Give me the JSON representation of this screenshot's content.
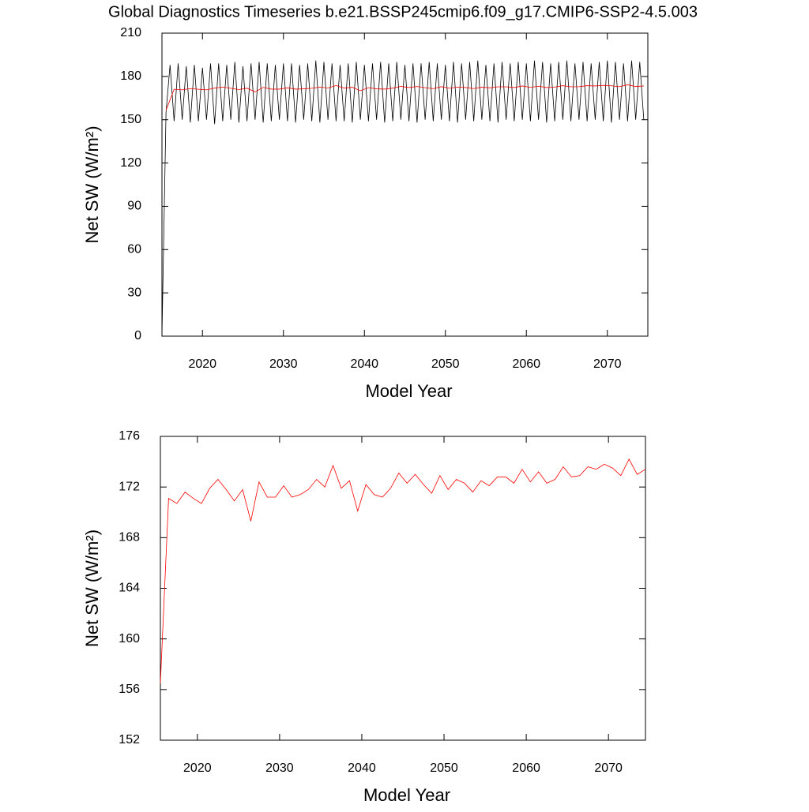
{
  "chart_data": [
    {
      "type": "line",
      "title": "Global Diagnostics Timeseries b.e21.BSSP245cmip6.f09_g17.CMIP6-SSP2-4.5.003",
      "xlabel": "Model Year",
      "ylabel": "Net SW (W/m²)",
      "xlim": [
        2015,
        2075
      ],
      "xticks": [
        2020,
        2030,
        2040,
        2050,
        2060,
        2070
      ],
      "ylim": [
        0,
        210
      ],
      "yticks": [
        0,
        30,
        60,
        90,
        120,
        150,
        180,
        210
      ],
      "x": [
        2015.5,
        2016.5,
        2017.5,
        2018.5,
        2019.5,
        2020.5,
        2021.5,
        2022.5,
        2023.5,
        2024.5,
        2025.5,
        2026.5,
        2027.5,
        2028.5,
        2029.5,
        2030.5,
        2031.5,
        2032.5,
        2033.5,
        2034.5,
        2035.5,
        2036.5,
        2037.5,
        2038.5,
        2039.5,
        2040.5,
        2041.5,
        2042.5,
        2043.5,
        2044.5,
        2045.5,
        2046.5,
        2047.5,
        2048.5,
        2049.5,
        2050.5,
        2051.5,
        2052.5,
        2053.5,
        2054.5,
        2055.5,
        2056.5,
        2057.5,
        2058.5,
        2059.5,
        2060.5,
        2061.5,
        2062.5,
        2063.5,
        2064.5,
        2065.5,
        2066.5,
        2067.5,
        2068.5,
        2069.5,
        2070.5,
        2071.5,
        2072.5,
        2073.5,
        2074.5
      ],
      "series": [
        {
          "color": "#000000",
          "x": [
            2015,
            2015.5,
            2016,
            2016.5,
            2017,
            2017.5,
            2018,
            2018.5,
            2019,
            2019.5,
            2020,
            2020.5,
            2021,
            2021.5,
            2022,
            2022.5,
            2023,
            2023.5,
            2024,
            2024.5,
            2025,
            2025.5,
            2026,
            2026.5,
            2027,
            2027.5,
            2028,
            2028.5,
            2029,
            2029.5,
            2030,
            2030.5,
            2031,
            2031.5,
            2032,
            2032.5,
            2033,
            2033.5,
            2034,
            2034.5,
            2035,
            2035.5,
            2036,
            2036.5,
            2037,
            2037.5,
            2038,
            2038.5,
            2039,
            2039.5,
            2040,
            2040.5,
            2041,
            2041.5,
            2042,
            2042.5,
            2043,
            2043.5,
            2044,
            2044.5,
            2045,
            2045.5,
            2046,
            2046.5,
            2047,
            2047.5,
            2048,
            2048.5,
            2049,
            2049.5,
            2050,
            2050.5,
            2051,
            2051.5,
            2052,
            2052.5,
            2053,
            2053.5,
            2054,
            2054.5,
            2055,
            2055.5,
            2056,
            2056.5,
            2057,
            2057.5,
            2058,
            2058.5,
            2059,
            2059.5,
            2060,
            2060.5,
            2061,
            2061.5,
            2062,
            2062.5,
            2063,
            2063.5,
            2064,
            2064.5,
            2065,
            2065.5,
            2066,
            2066.5,
            2067,
            2067.5,
            2068,
            2068.5,
            2069,
            2069.5,
            2070,
            2070.5,
            2071,
            2071.5,
            2072,
            2072.5,
            2073,
            2073.5,
            2074,
            2074.5
          ],
          "values": [
            0,
            155,
            188,
            149,
            189,
            150,
            187,
            148,
            188,
            149,
            186,
            150,
            189,
            147,
            189,
            149,
            188,
            150,
            190,
            148,
            187,
            149,
            189,
            150,
            190,
            148,
            189,
            149,
            188,
            150,
            189,
            149,
            189,
            148,
            188,
            150,
            189,
            149,
            191,
            148,
            190,
            150,
            189,
            149,
            188,
            149,
            189,
            148,
            190,
            150,
            188,
            149,
            189,
            150,
            190,
            148,
            189,
            149,
            190,
            150,
            188,
            149,
            189,
            148,
            189,
            150,
            190,
            149,
            189,
            150,
            188,
            149,
            190,
            148,
            189,
            150,
            190,
            149,
            191,
            150,
            188,
            149,
            189,
            148,
            190,
            150,
            189,
            149,
            190,
            150,
            189,
            149,
            191,
            150,
            190,
            148,
            189,
            149,
            190,
            150,
            191,
            149,
            189,
            150,
            190,
            149,
            189,
            150,
            190,
            149,
            191,
            148,
            190,
            150,
            189,
            149,
            191,
            150,
            190,
            150
          ]
        },
        {
          "color": "#ff0000",
          "values": [
            156.5,
            171.1,
            170.7,
            171.6,
            171.1,
            170.7,
            171.9,
            172.6,
            171.8,
            170.9,
            171.8,
            169.3,
            172.4,
            171.2,
            171.2,
            172.1,
            171.2,
            171.4,
            171.8,
            172.6,
            172.0,
            173.7,
            171.9,
            172.5,
            170.1,
            172.2,
            171.4,
            171.2,
            171.9,
            173.1,
            172.3,
            173.0,
            172.2,
            171.5,
            172.9,
            171.8,
            172.6,
            172.3,
            171.6,
            172.5,
            172.1,
            172.8,
            172.8,
            172.3,
            173.4,
            172.4,
            173.2,
            172.3,
            172.6,
            173.6,
            172.8,
            172.9,
            173.6,
            173.4,
            173.8,
            173.5,
            172.9,
            174.2,
            173.0,
            173.4
          ]
        }
      ]
    },
    {
      "type": "line",
      "xlabel": "Model Year",
      "ylabel": "Net SW (W/m²)",
      "xlim": [
        2015.5,
        2074.5
      ],
      "xticks": [
        2020,
        2030,
        2040,
        2050,
        2060,
        2070
      ],
      "ylim": [
        152,
        176
      ],
      "yticks": [
        152,
        156,
        160,
        164,
        168,
        172,
        176
      ],
      "x": [
        2015.5,
        2016.5,
        2017.5,
        2018.5,
        2019.5,
        2020.5,
        2021.5,
        2022.5,
        2023.5,
        2024.5,
        2025.5,
        2026.5,
        2027.5,
        2028.5,
        2029.5,
        2030.5,
        2031.5,
        2032.5,
        2033.5,
        2034.5,
        2035.5,
        2036.5,
        2037.5,
        2038.5,
        2039.5,
        2040.5,
        2041.5,
        2042.5,
        2043.5,
        2044.5,
        2045.5,
        2046.5,
        2047.5,
        2048.5,
        2049.5,
        2050.5,
        2051.5,
        2052.5,
        2053.5,
        2054.5,
        2055.5,
        2056.5,
        2057.5,
        2058.5,
        2059.5,
        2060.5,
        2061.5,
        2062.5,
        2063.5,
        2064.5,
        2065.5,
        2066.5,
        2067.5,
        2068.5,
        2069.5,
        2070.5,
        2071.5,
        2072.5,
        2073.5,
        2074.5
      ],
      "series": [
        {
          "color": "#ff0000",
          "values": [
            156.5,
            171.1,
            170.7,
            171.6,
            171.1,
            170.7,
            171.9,
            172.6,
            171.8,
            170.9,
            171.8,
            169.3,
            172.4,
            171.2,
            171.2,
            172.1,
            171.2,
            171.4,
            171.8,
            172.6,
            172.0,
            173.7,
            171.9,
            172.5,
            170.1,
            172.2,
            171.4,
            171.2,
            171.9,
            173.1,
            172.3,
            173.0,
            172.2,
            171.5,
            172.9,
            171.8,
            172.6,
            172.3,
            171.6,
            172.5,
            172.1,
            172.8,
            172.8,
            172.3,
            173.4,
            172.4,
            173.2,
            172.3,
            172.6,
            173.6,
            172.8,
            172.9,
            173.6,
            173.4,
            173.8,
            173.5,
            172.9,
            174.2,
            173.0,
            173.4
          ]
        }
      ]
    }
  ]
}
